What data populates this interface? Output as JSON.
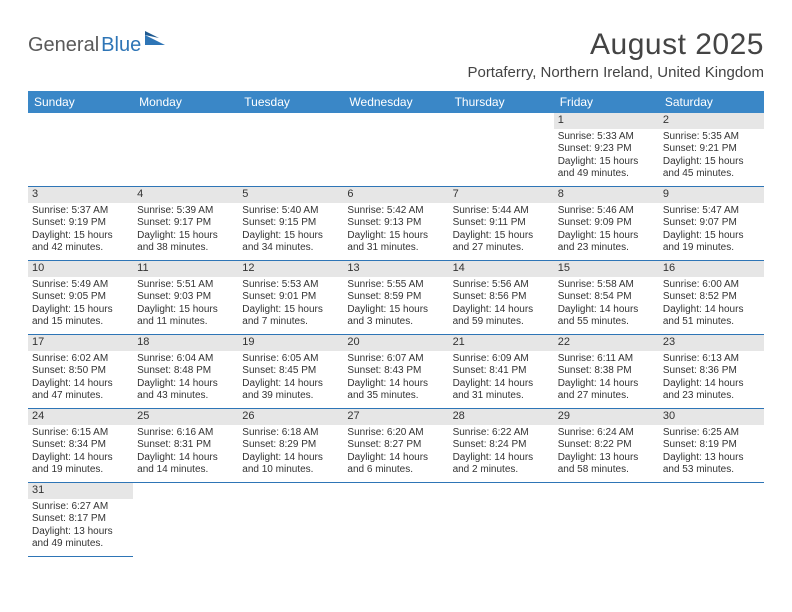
{
  "logo": {
    "text1": "General",
    "text2": "Blue"
  },
  "title": "August 2025",
  "location": "Portaferry, Northern Ireland, United Kingdom",
  "colors": {
    "header_bg": "#3a87c7",
    "header_text": "#ffffff",
    "rule": "#2e75b6",
    "daynum_bg": "#e6e6e6",
    "logo_gray": "#5a5a5a",
    "logo_blue": "#2e75b6"
  },
  "weekdays": [
    "Sunday",
    "Monday",
    "Tuesday",
    "Wednesday",
    "Thursday",
    "Friday",
    "Saturday"
  ],
  "weeks": [
    [
      null,
      null,
      null,
      null,
      null,
      {
        "n": "1",
        "sr": "Sunrise: 5:33 AM",
        "ss": "Sunset: 9:23 PM",
        "dl": "Daylight: 15 hours and 49 minutes."
      },
      {
        "n": "2",
        "sr": "Sunrise: 5:35 AM",
        "ss": "Sunset: 9:21 PM",
        "dl": "Daylight: 15 hours and 45 minutes."
      }
    ],
    [
      {
        "n": "3",
        "sr": "Sunrise: 5:37 AM",
        "ss": "Sunset: 9:19 PM",
        "dl": "Daylight: 15 hours and 42 minutes."
      },
      {
        "n": "4",
        "sr": "Sunrise: 5:39 AM",
        "ss": "Sunset: 9:17 PM",
        "dl": "Daylight: 15 hours and 38 minutes."
      },
      {
        "n": "5",
        "sr": "Sunrise: 5:40 AM",
        "ss": "Sunset: 9:15 PM",
        "dl": "Daylight: 15 hours and 34 minutes."
      },
      {
        "n": "6",
        "sr": "Sunrise: 5:42 AM",
        "ss": "Sunset: 9:13 PM",
        "dl": "Daylight: 15 hours and 31 minutes."
      },
      {
        "n": "7",
        "sr": "Sunrise: 5:44 AM",
        "ss": "Sunset: 9:11 PM",
        "dl": "Daylight: 15 hours and 27 minutes."
      },
      {
        "n": "8",
        "sr": "Sunrise: 5:46 AM",
        "ss": "Sunset: 9:09 PM",
        "dl": "Daylight: 15 hours and 23 minutes."
      },
      {
        "n": "9",
        "sr": "Sunrise: 5:47 AM",
        "ss": "Sunset: 9:07 PM",
        "dl": "Daylight: 15 hours and 19 minutes."
      }
    ],
    [
      {
        "n": "10",
        "sr": "Sunrise: 5:49 AM",
        "ss": "Sunset: 9:05 PM",
        "dl": "Daylight: 15 hours and 15 minutes."
      },
      {
        "n": "11",
        "sr": "Sunrise: 5:51 AM",
        "ss": "Sunset: 9:03 PM",
        "dl": "Daylight: 15 hours and 11 minutes."
      },
      {
        "n": "12",
        "sr": "Sunrise: 5:53 AM",
        "ss": "Sunset: 9:01 PM",
        "dl": "Daylight: 15 hours and 7 minutes."
      },
      {
        "n": "13",
        "sr": "Sunrise: 5:55 AM",
        "ss": "Sunset: 8:59 PM",
        "dl": "Daylight: 15 hours and 3 minutes."
      },
      {
        "n": "14",
        "sr": "Sunrise: 5:56 AM",
        "ss": "Sunset: 8:56 PM",
        "dl": "Daylight: 14 hours and 59 minutes."
      },
      {
        "n": "15",
        "sr": "Sunrise: 5:58 AM",
        "ss": "Sunset: 8:54 PM",
        "dl": "Daylight: 14 hours and 55 minutes."
      },
      {
        "n": "16",
        "sr": "Sunrise: 6:00 AM",
        "ss": "Sunset: 8:52 PM",
        "dl": "Daylight: 14 hours and 51 minutes."
      }
    ],
    [
      {
        "n": "17",
        "sr": "Sunrise: 6:02 AM",
        "ss": "Sunset: 8:50 PM",
        "dl": "Daylight: 14 hours and 47 minutes."
      },
      {
        "n": "18",
        "sr": "Sunrise: 6:04 AM",
        "ss": "Sunset: 8:48 PM",
        "dl": "Daylight: 14 hours and 43 minutes."
      },
      {
        "n": "19",
        "sr": "Sunrise: 6:05 AM",
        "ss": "Sunset: 8:45 PM",
        "dl": "Daylight: 14 hours and 39 minutes."
      },
      {
        "n": "20",
        "sr": "Sunrise: 6:07 AM",
        "ss": "Sunset: 8:43 PM",
        "dl": "Daylight: 14 hours and 35 minutes."
      },
      {
        "n": "21",
        "sr": "Sunrise: 6:09 AM",
        "ss": "Sunset: 8:41 PM",
        "dl": "Daylight: 14 hours and 31 minutes."
      },
      {
        "n": "22",
        "sr": "Sunrise: 6:11 AM",
        "ss": "Sunset: 8:38 PM",
        "dl": "Daylight: 14 hours and 27 minutes."
      },
      {
        "n": "23",
        "sr": "Sunrise: 6:13 AM",
        "ss": "Sunset: 8:36 PM",
        "dl": "Daylight: 14 hours and 23 minutes."
      }
    ],
    [
      {
        "n": "24",
        "sr": "Sunrise: 6:15 AM",
        "ss": "Sunset: 8:34 PM",
        "dl": "Daylight: 14 hours and 19 minutes."
      },
      {
        "n": "25",
        "sr": "Sunrise: 6:16 AM",
        "ss": "Sunset: 8:31 PM",
        "dl": "Daylight: 14 hours and 14 minutes."
      },
      {
        "n": "26",
        "sr": "Sunrise: 6:18 AM",
        "ss": "Sunset: 8:29 PM",
        "dl": "Daylight: 14 hours and 10 minutes."
      },
      {
        "n": "27",
        "sr": "Sunrise: 6:20 AM",
        "ss": "Sunset: 8:27 PM",
        "dl": "Daylight: 14 hours and 6 minutes."
      },
      {
        "n": "28",
        "sr": "Sunrise: 6:22 AM",
        "ss": "Sunset: 8:24 PM",
        "dl": "Daylight: 14 hours and 2 minutes."
      },
      {
        "n": "29",
        "sr": "Sunrise: 6:24 AM",
        "ss": "Sunset: 8:22 PM",
        "dl": "Daylight: 13 hours and 58 minutes."
      },
      {
        "n": "30",
        "sr": "Sunrise: 6:25 AM",
        "ss": "Sunset: 8:19 PM",
        "dl": "Daylight: 13 hours and 53 minutes."
      }
    ],
    [
      {
        "n": "31",
        "sr": "Sunrise: 6:27 AM",
        "ss": "Sunset: 8:17 PM",
        "dl": "Daylight: 13 hours and 49 minutes."
      },
      null,
      null,
      null,
      null,
      null,
      null
    ]
  ]
}
